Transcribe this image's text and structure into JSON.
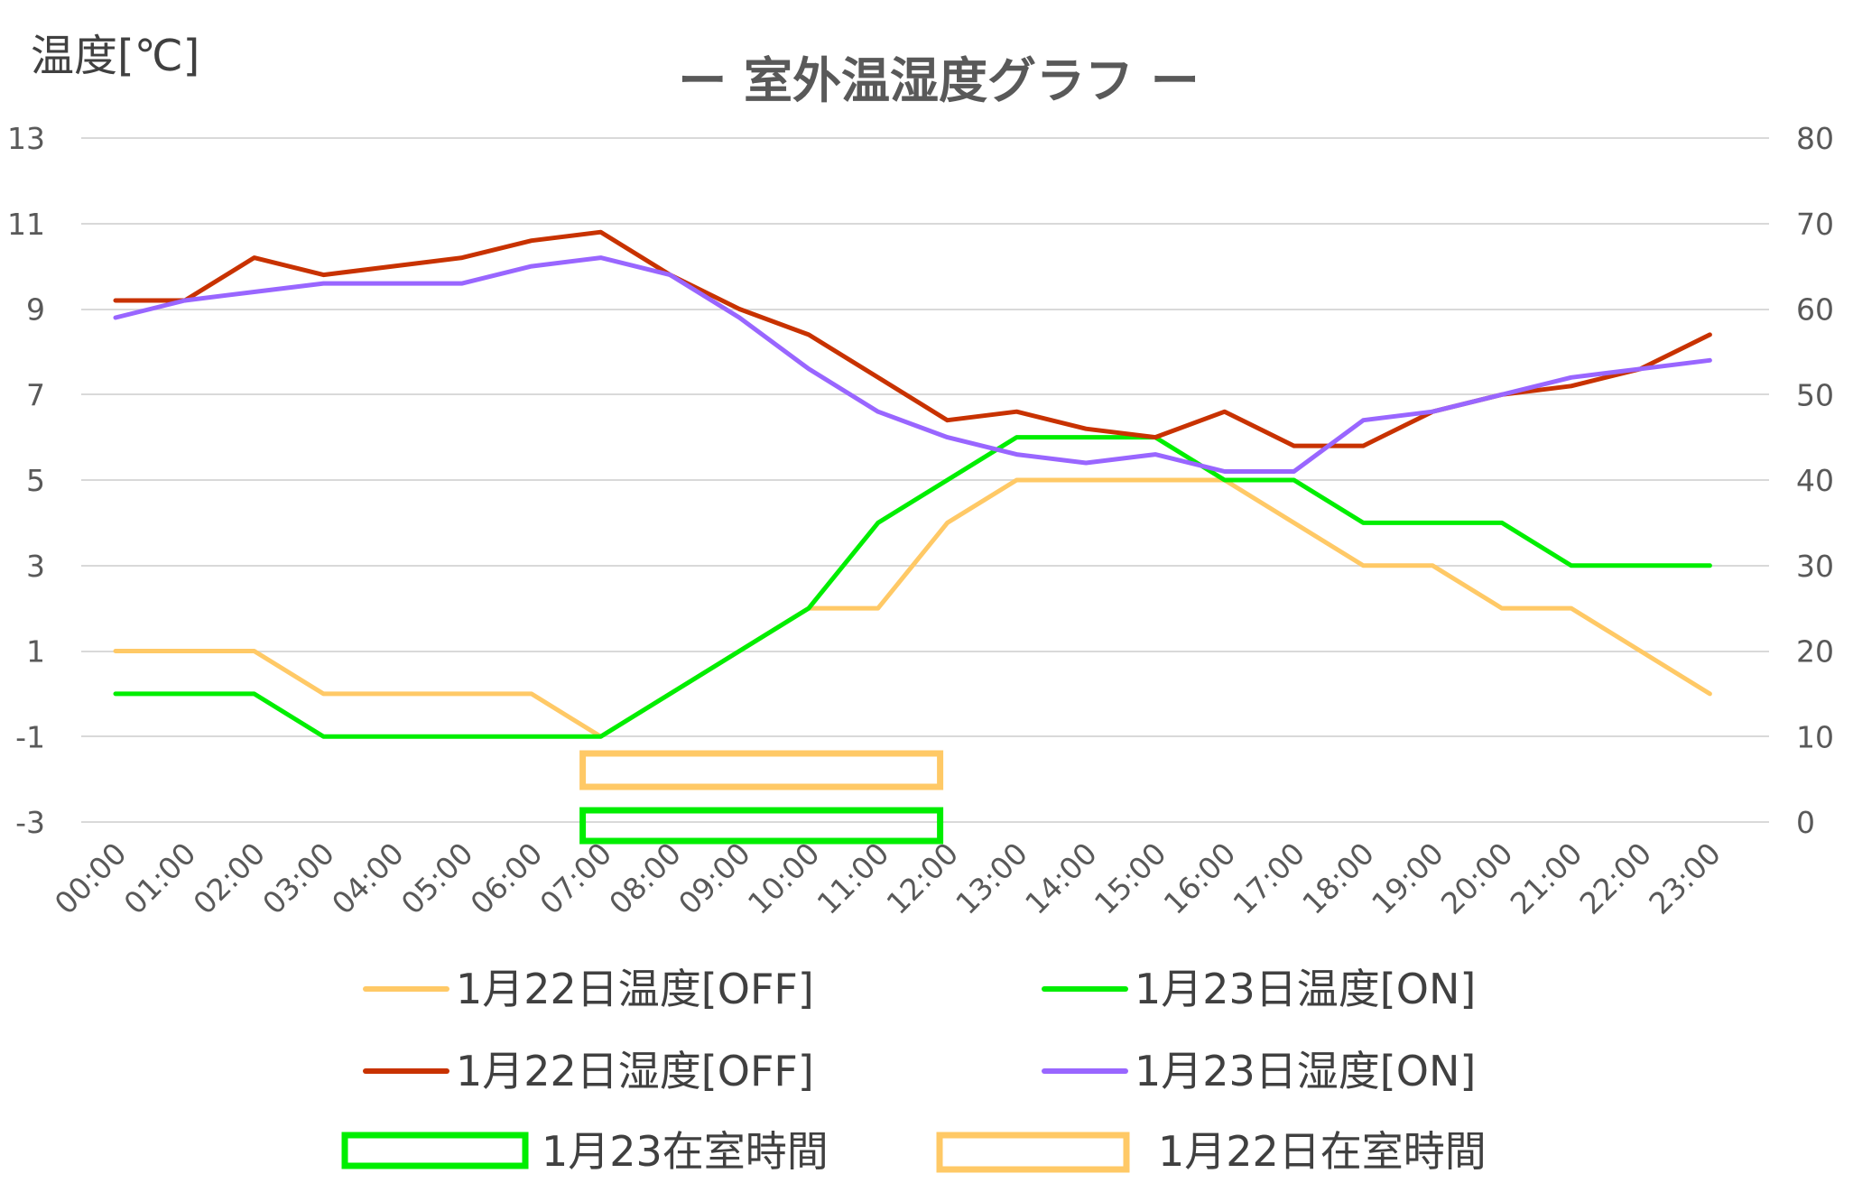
{
  "chart_data": {
    "type": "line",
    "title": "ー 室外温湿度グラフ ー",
    "ylabel": "温度[℃]",
    "y2label": "",
    "ylim": [
      -3,
      13
    ],
    "y2lim": [
      0,
      80
    ],
    "yticks": [
      "13",
      "11",
      "9",
      "7",
      "5",
      "3",
      "1",
      "-1",
      "-3"
    ],
    "y2ticks": [
      "80",
      "70",
      "60",
      "50",
      "40",
      "30",
      "20",
      "10",
      "0"
    ],
    "grid": true,
    "legend_position": "bottom",
    "categories": [
      "00:00",
      "01:00",
      "02:00",
      "03:00",
      "04:00",
      "05:00",
      "06:00",
      "07:00",
      "08:00",
      "09:00",
      "10:00",
      "11:00",
      "12:00",
      "13:00",
      "14:00",
      "15:00",
      "16:00",
      "17:00",
      "18:00",
      "19:00",
      "20:00",
      "21:00",
      "22:00",
      "23:00"
    ],
    "series": [
      {
        "name": "1月22日温度[OFF]",
        "axis": "left",
        "color": "#FFC966",
        "values": [
          1,
          1,
          1,
          0,
          0,
          0,
          0,
          -1,
          0,
          1,
          2,
          2,
          4,
          5,
          5,
          5,
          5,
          4,
          3,
          3,
          2,
          2,
          1,
          0
        ]
      },
      {
        "name": "1月23日温度[ON]",
        "axis": "left",
        "color": "#00EE00",
        "values": [
          0,
          0,
          0,
          -1,
          -1,
          -1,
          -1,
          -1,
          0,
          1,
          2,
          4,
          5,
          6,
          6,
          6,
          5,
          5,
          4,
          4,
          4,
          3,
          3,
          3
        ]
      },
      {
        "name": "1月22日湿度[OFF]",
        "axis": "right",
        "color": "#C83200",
        "values": [
          61,
          61,
          66,
          64,
          65,
          66,
          68,
          69,
          64,
          60,
          57,
          52,
          47,
          48,
          46,
          45,
          48,
          44,
          44,
          48,
          50,
          51,
          53,
          57
        ]
      },
      {
        "name": "1月23日湿度[ON]",
        "axis": "right",
        "color": "#9966FF",
        "values": [
          59,
          61,
          62,
          63,
          63,
          63,
          65,
          66,
          64,
          59,
          53,
          48,
          45,
          43,
          42,
          43,
          41,
          41,
          47,
          48,
          50,
          52,
          53,
          54
        ]
      }
    ],
    "occupancy": [
      {
        "name": "1月22日在室時間",
        "color": "#FFC966",
        "start": "07:00",
        "end": "12:00"
      },
      {
        "name": "1月23在室時間",
        "color": "#00EE00",
        "start": "07:00",
        "end": "12:00"
      }
    ]
  }
}
